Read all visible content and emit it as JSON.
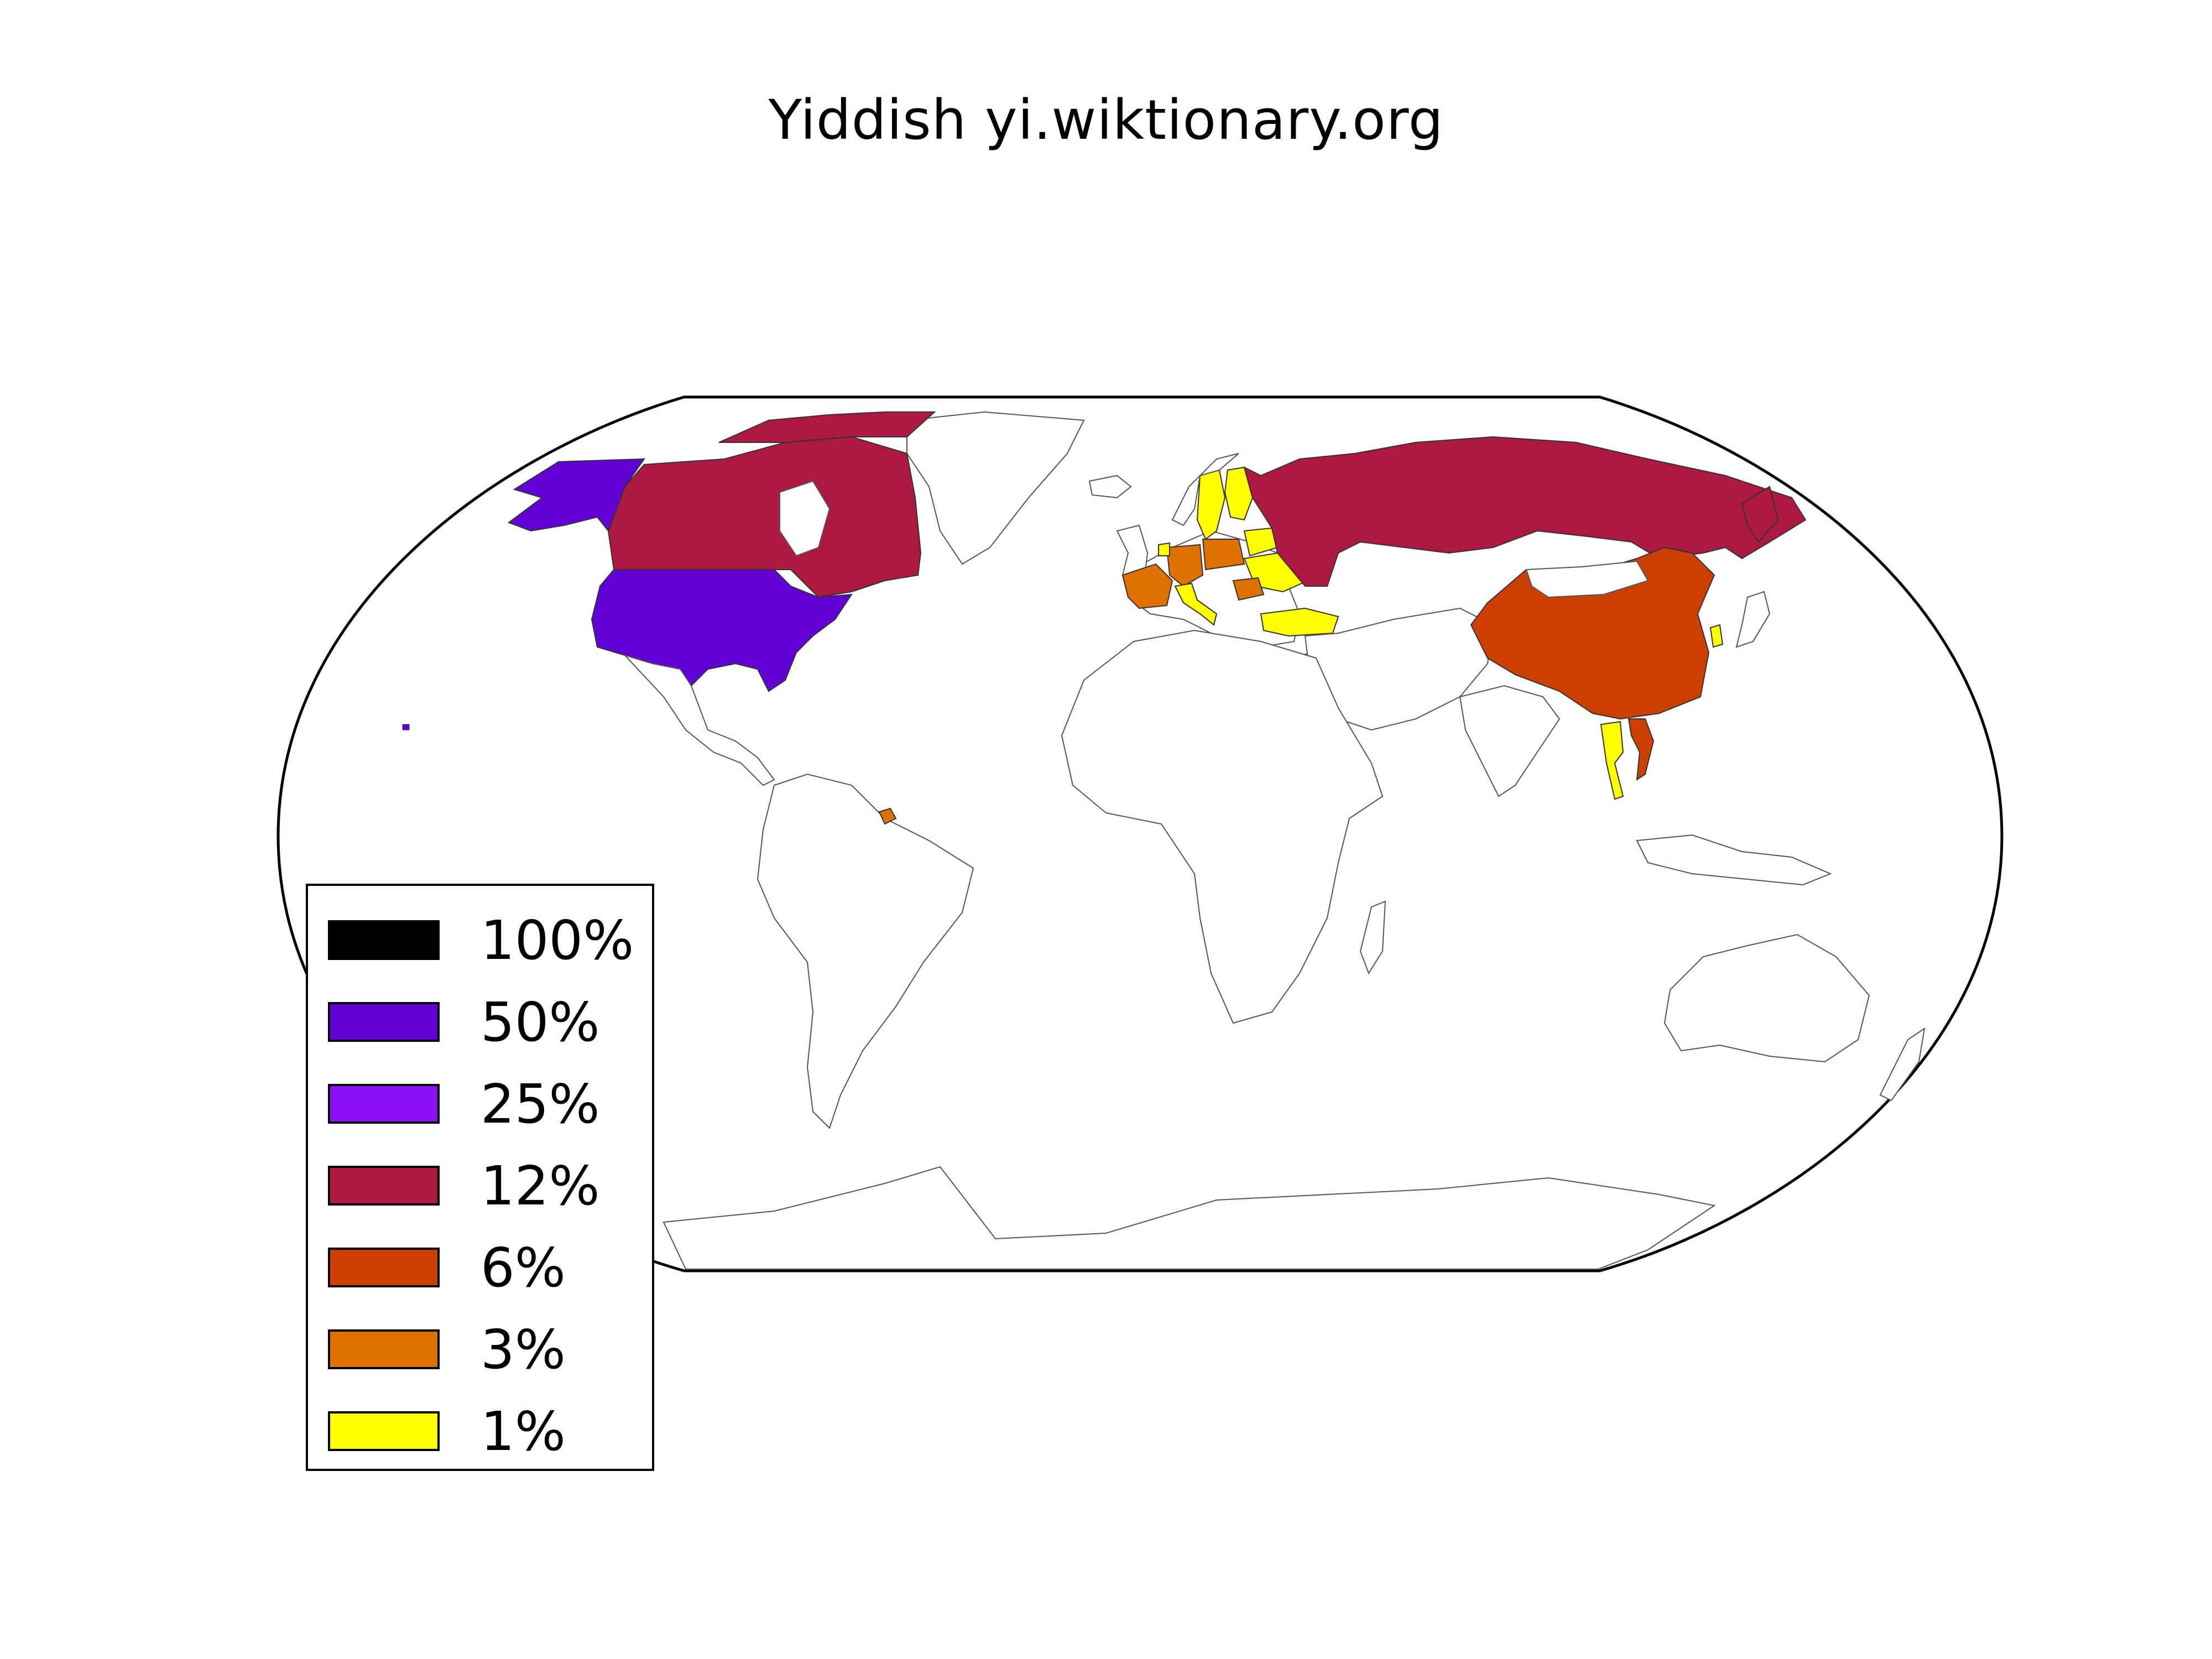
{
  "title": "Yiddish yi.wiktionary.org",
  "legend": {
    "items": [
      {
        "label": "100%",
        "color": "#000000"
      },
      {
        "label": "50%",
        "color": "#6000d6"
      },
      {
        "label": "25%",
        "color": "#8c10f5"
      },
      {
        "label": "12%",
        "color": "#ad1940"
      },
      {
        "label": "6%",
        "color": "#cb4000"
      },
      {
        "label": "3%",
        "color": "#e07000"
      },
      {
        "label": "1%",
        "color": "#ffff00"
      }
    ]
  },
  "regions": {
    "united-states": {
      "label": "United States",
      "bucket": "50%",
      "color": "#6000d6"
    },
    "canada": {
      "label": "Canada",
      "bucket": "12%",
      "color": "#ad1940"
    },
    "russia": {
      "label": "Russia",
      "bucket": "12%",
      "color": "#ad1940"
    },
    "china": {
      "label": "China",
      "bucket": "6%",
      "color": "#cb4000"
    },
    "vietnam": {
      "label": "Vietnam",
      "bucket": "6%",
      "color": "#cb4000"
    },
    "france": {
      "label": "France",
      "bucket": "3%",
      "color": "#e07000"
    },
    "germany": {
      "label": "Germany",
      "bucket": "3%",
      "color": "#e07000"
    },
    "poland": {
      "label": "Poland",
      "bucket": "3%",
      "color": "#e07000"
    },
    "romania": {
      "label": "Romania",
      "bucket": "3%",
      "color": "#e07000"
    },
    "israel": {
      "label": "Israel",
      "bucket": "3%",
      "color": "#e07000"
    },
    "suriname": {
      "label": "Suriname",
      "bucket": "3%",
      "color": "#e07000"
    },
    "sweden": {
      "label": "Sweden",
      "bucket": "1%",
      "color": "#ffff00"
    },
    "finland": {
      "label": "Finland",
      "bucket": "1%",
      "color": "#ffff00"
    },
    "ukraine": {
      "label": "Ukraine",
      "bucket": "1%",
      "color": "#ffff00"
    },
    "belarus": {
      "label": "Belarus",
      "bucket": "1%",
      "color": "#ffff00"
    },
    "netherlands": {
      "label": "Netherlands",
      "bucket": "1%",
      "color": "#ffff00"
    },
    "italy": {
      "label": "Italy",
      "bucket": "1%",
      "color": "#ffff00"
    },
    "turkey": {
      "label": "Turkey",
      "bucket": "1%",
      "color": "#ffff00"
    },
    "thailand": {
      "label": "Thailand",
      "bucket": "1%",
      "color": "#ffff00"
    },
    "south-korea": {
      "label": "South Korea",
      "bucket": "1%",
      "color": "#ffff00"
    }
  }
}
